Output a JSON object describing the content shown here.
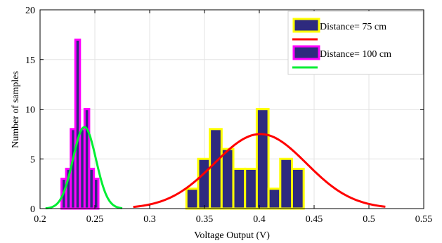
{
  "chart_data": {
    "type": "histogram",
    "xlabel": "Voltage Output (V)",
    "ylabel": "Number of samples",
    "xlim": [
      0.2,
      0.55
    ],
    "ylim": [
      0,
      20
    ],
    "xticks": [
      "0.2",
      "0.25",
      "0.3",
      "0.35",
      "0.4",
      "0.45",
      "0.5",
      "0.55"
    ],
    "yticks": [
      "0",
      "5",
      "10",
      "15",
      "20"
    ],
    "grid": true,
    "legend_position": "top-right",
    "colors": {
      "bar_fill": "#2e2a7e",
      "edge_75": "#ffff00",
      "edge_100": "#ff00ff",
      "fit_75": "#ff0000",
      "fit_100": "#00ee33"
    },
    "series": [
      {
        "name": "Distance= 75 cm",
        "bin_width": 0.0107,
        "bins": [
          {
            "x": 0.3335,
            "count": 2
          },
          {
            "x": 0.3442,
            "count": 5
          },
          {
            "x": 0.3549,
            "count": 8
          },
          {
            "x": 0.3656,
            "count": 6
          },
          {
            "x": 0.3763,
            "count": 4
          },
          {
            "x": 0.387,
            "count": 4
          },
          {
            "x": 0.3977,
            "count": 10
          },
          {
            "x": 0.4084,
            "count": 2
          },
          {
            "x": 0.4191,
            "count": 5
          },
          {
            "x": 0.4298,
            "count": 4
          }
        ],
        "fit": {
          "type": "normal",
          "mean": 0.401,
          "std": 0.042,
          "peak": 7.5,
          "x_range": [
            0.285,
            0.515
          ]
        }
      },
      {
        "name": "Distance= 100 cm",
        "bin_width": 0.0042,
        "bins": [
          {
            "x": 0.2196,
            "count": 3
          },
          {
            "x": 0.2238,
            "count": 4
          },
          {
            "x": 0.228,
            "count": 8
          },
          {
            "x": 0.2322,
            "count": 17
          },
          {
            "x": 0.2364,
            "count": 8
          },
          {
            "x": 0.2406,
            "count": 10
          },
          {
            "x": 0.2448,
            "count": 4
          },
          {
            "x": 0.249,
            "count": 3
          }
        ],
        "fit": {
          "type": "normal",
          "mean": 0.2405,
          "std": 0.0105,
          "peak": 8.2,
          "x_range": [
            0.205,
            0.275
          ]
        }
      }
    ]
  }
}
